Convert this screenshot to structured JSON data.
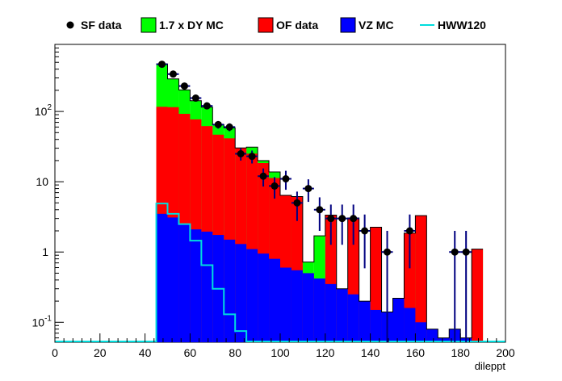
{
  "chart_data": {
    "type": "bar",
    "stacked": true,
    "title": "",
    "xlabel": "dileppt",
    "ylabel": "",
    "xlim": [
      0,
      200
    ],
    "ylim": [
      0.052,
      900
    ],
    "y_scale": "log",
    "bin_width": 5,
    "x_ticks": [
      0,
      20,
      40,
      60,
      80,
      100,
      120,
      140,
      160,
      180,
      200
    ],
    "y_ticks": [
      {
        "value": 0.1,
        "label": "10",
        "exp": "-1"
      },
      {
        "value": 1,
        "label": "1",
        "exp": ""
      },
      {
        "value": 10,
        "label": "10",
        "exp": ""
      },
      {
        "value": 100,
        "label": "10",
        "exp": "2"
      }
    ],
    "grid": false,
    "legend_position": "top",
    "legend": [
      {
        "label": "SF data",
        "kind": "marker",
        "color": "#000000"
      },
      {
        "label": "1.7 x DY MC",
        "kind": "fill",
        "color": "#00ff00"
      },
      {
        "label": "OF data",
        "kind": "fill",
        "color": "#ff0000"
      },
      {
        "label": "VZ MC",
        "kind": "fill",
        "color": "#0000ff"
      },
      {
        "label": "HWW120",
        "kind": "line",
        "color": "#00dddd"
      }
    ],
    "series": [
      {
        "name": "VZ MC",
        "color": "#0000ff",
        "x": [
          45,
          50,
          55,
          60,
          65,
          70,
          75,
          80,
          85,
          90,
          95,
          100,
          105,
          110,
          115,
          120,
          125,
          130,
          135,
          140,
          145,
          150,
          155,
          160,
          165,
          170,
          175,
          180,
          185
        ],
        "values": [
          3.5,
          3.1,
          2.5,
          2.1,
          1.95,
          1.75,
          1.5,
          1.3,
          1.1,
          0.95,
          0.8,
          0.6,
          0.55,
          0.5,
          0.42,
          0.35,
          0.3,
          0.25,
          0.2,
          0.15,
          0.14,
          0.22,
          0.16,
          0.1,
          0.08,
          0.06,
          0.08,
          0.06,
          0
        ]
      },
      {
        "name": "OF data",
        "color": "#ff0000",
        "x": [
          45,
          50,
          55,
          60,
          65,
          70,
          75,
          80,
          85,
          90,
          95,
          100,
          105,
          110,
          115,
          120,
          125,
          130,
          135,
          140,
          145,
          150,
          155,
          160,
          165,
          170,
          175,
          180,
          185
        ],
        "values": [
          113,
          112,
          90,
          75,
          60,
          45,
          40,
          29,
          24,
          17.5,
          10.5,
          5.8,
          5.6,
          0,
          0,
          3.0,
          0,
          2.8,
          0,
          2.1,
          0,
          0,
          1.7,
          3.2,
          0,
          0,
          0,
          0,
          1.1
        ]
      },
      {
        "name": "1.7 x DY MC",
        "color": "#00ff00",
        "x": [
          45,
          50,
          55,
          60,
          65,
          70,
          75,
          80,
          85,
          90,
          95,
          100,
          105,
          110,
          115,
          120,
          125,
          130,
          135,
          140,
          145,
          150,
          155,
          160,
          165,
          170,
          175,
          180,
          185
        ],
        "values": [
          357,
          175,
          110,
          65,
          53,
          18,
          17,
          0,
          6,
          1.5,
          2.5,
          0,
          0,
          0.22,
          1.28,
          0,
          0,
          0,
          0,
          0,
          0,
          0,
          0,
          0,
          0,
          0,
          0,
          0,
          0
        ]
      },
      {
        "name": "HWW120",
        "color": "#00dddd",
        "x": [
          45,
          50,
          55,
          60,
          65,
          70,
          75,
          80
        ],
        "values": [
          4.9,
          3.5,
          2.5,
          1.45,
          0.65,
          0.3,
          0.13,
          0.075
        ],
        "style": "line"
      },
      {
        "name": "SF data",
        "color": "#000000",
        "style": "points",
        "x": [
          47.5,
          52.5,
          57.5,
          62.5,
          67.5,
          72.5,
          77.5,
          82.5,
          87.5,
          92.5,
          97.5,
          102.5,
          107.5,
          112.5,
          117.5,
          122.5,
          127.5,
          132.5,
          137.5,
          147.5,
          157.5,
          177.5,
          182.5
        ],
        "values": [
          470,
          340,
          230,
          155,
          120,
          65,
          60,
          25,
          23,
          12,
          8.7,
          11,
          5,
          8,
          4,
          3,
          3,
          3,
          2,
          1,
          2,
          1,
          1
        ]
      }
    ]
  }
}
